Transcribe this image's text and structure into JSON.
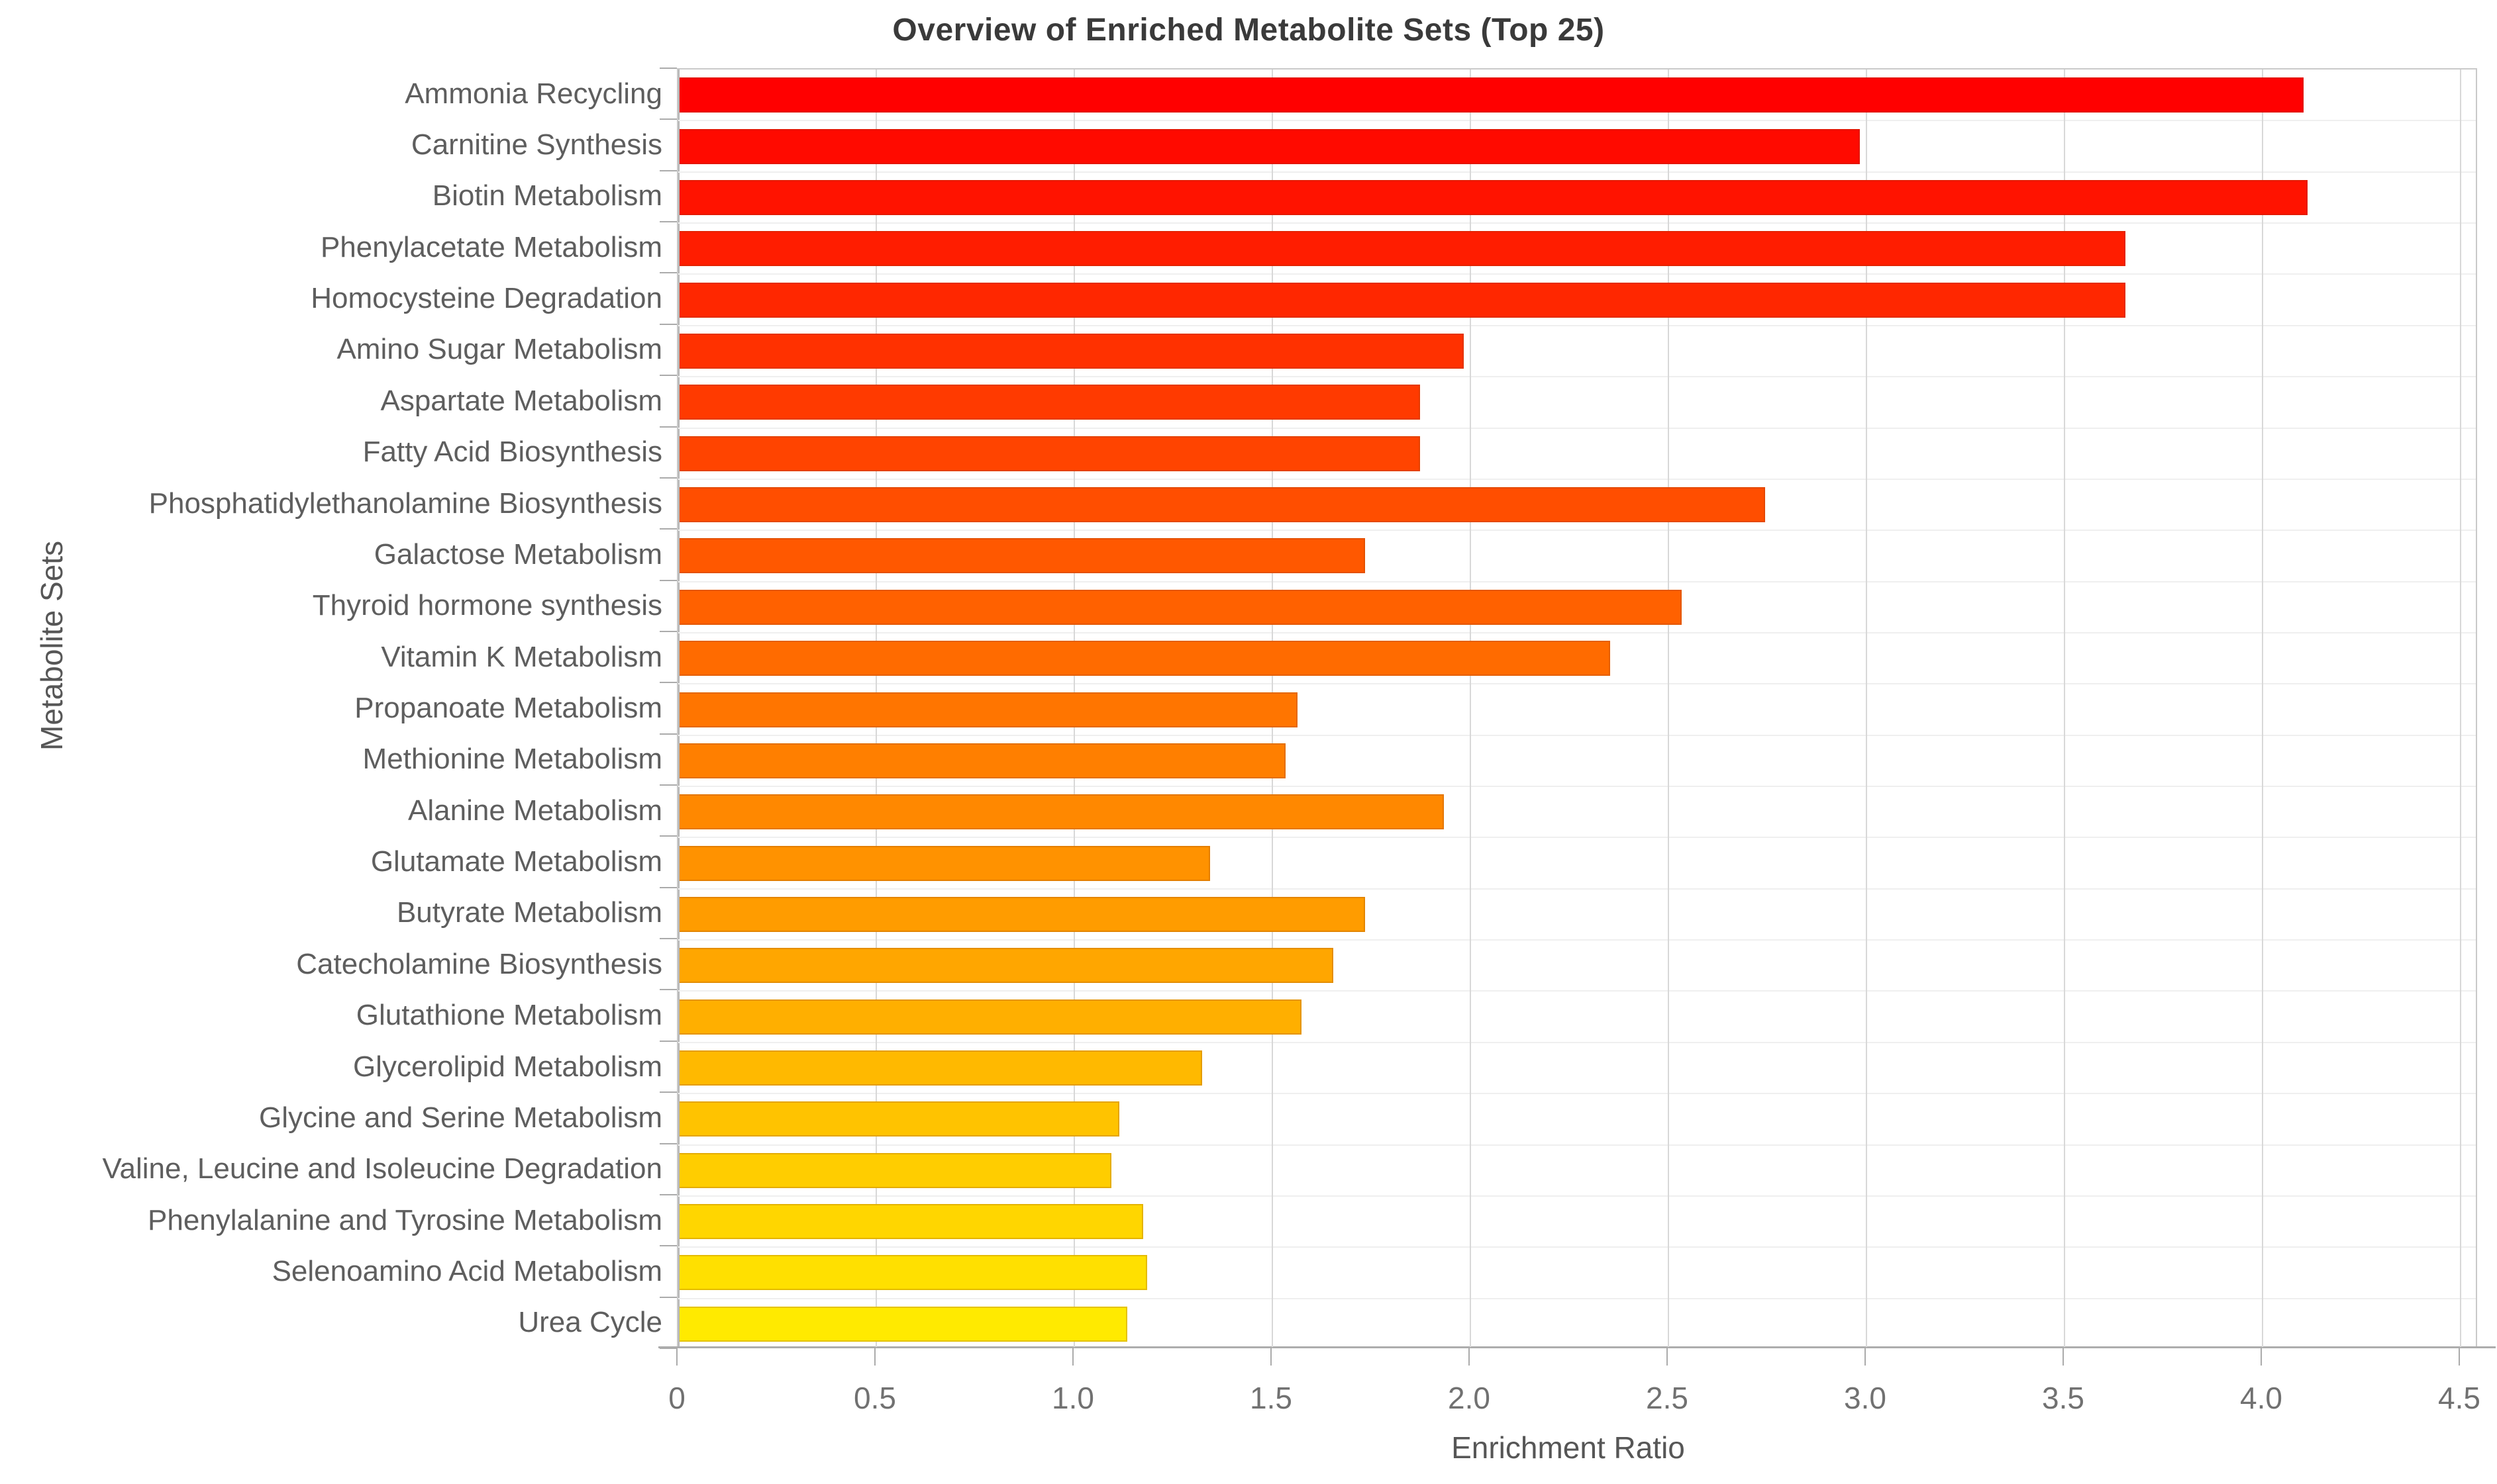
{
  "chart_data": {
    "type": "bar",
    "orientation": "horizontal",
    "title": "Overview of Enriched Metabolite Sets (Top 25)",
    "xlabel": "Enrichment Ratio",
    "ylabel": "Metabolite Sets",
    "xlim": [
      0,
      4.5
    ],
    "grid": true,
    "legend": "none",
    "xticks": [
      {
        "value": 0.0,
        "label": "0"
      },
      {
        "value": 0.5,
        "label": "0.5"
      },
      {
        "value": 1.0,
        "label": "1.0"
      },
      {
        "value": 1.5,
        "label": "1.5"
      },
      {
        "value": 2.0,
        "label": "2.0"
      },
      {
        "value": 2.5,
        "label": "2.5"
      },
      {
        "value": 3.0,
        "label": "3.0"
      },
      {
        "value": 3.5,
        "label": "3.5"
      },
      {
        "value": 4.0,
        "label": "4.0"
      },
      {
        "value": 4.5,
        "label": "4.5"
      }
    ],
    "categories": [
      "Ammonia Recycling",
      "Carnitine Synthesis",
      "Biotin Metabolism",
      "Phenylacetate Metabolism",
      "Homocysteine Degradation",
      "Amino Sugar Metabolism",
      "Aspartate Metabolism",
      "Fatty Acid Biosynthesis",
      "Phosphatidylethanolamine Biosynthesis",
      "Galactose Metabolism",
      "Thyroid hormone synthesis",
      "Vitamin K Metabolism",
      "Propanoate Metabolism",
      "Methionine Metabolism",
      "Alanine Metabolism",
      "Glutamate Metabolism",
      "Butyrate Metabolism",
      "Catecholamine Biosynthesis",
      "Glutathione Metabolism",
      "Glycerolipid Metabolism",
      "Glycine and Serine Metabolism",
      "Valine, Leucine and Isoleucine Degradation",
      "Phenylalanine and Tyrosine Metabolism",
      "Selenoamino Acid Metabolism",
      "Urea Cycle"
    ],
    "values": [
      4.1,
      2.98,
      4.11,
      3.65,
      3.65,
      1.98,
      1.87,
      1.87,
      2.74,
      1.73,
      2.53,
      2.35,
      1.56,
      1.53,
      1.93,
      1.34,
      1.73,
      1.65,
      1.57,
      1.32,
      1.11,
      1.09,
      1.17,
      1.18,
      1.13
    ],
    "bar_colors": [
      "#FF0000",
      "#FF0A00",
      "#FF1300",
      "#FF1D00",
      "#FF2700",
      "#FF3100",
      "#FF3A00",
      "#FF4400",
      "#FF4E00",
      "#FF5800",
      "#FF6100",
      "#FF6B00",
      "#FF7500",
      "#FF7F00",
      "#FF8800",
      "#FF9200",
      "#FF9C00",
      "#FFA600",
      "#FFAF00",
      "#FFB900",
      "#FFC300",
      "#FFCD00",
      "#FFD600",
      "#FFE000",
      "#FFEA00"
    ],
    "style_colors": {
      "title_text": "#3a3a3a",
      "axis_text": "#565656",
      "tick_text": "#717171",
      "category_text": "#5e5e5e",
      "gridline": "#d8d8d8",
      "plot_border": "#c9c9c9",
      "axis_line": "#adadad"
    }
  }
}
